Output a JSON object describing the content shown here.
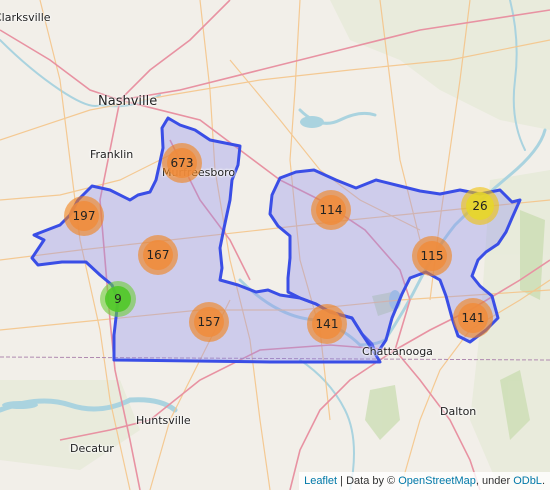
{
  "attribution": {
    "leaflet": "Leaflet",
    "separator": " | Data by © ",
    "osm": "OpenStreetMap",
    "under": ", under ",
    "odbl": "ODbL",
    "end": "."
  },
  "cities": [
    {
      "key": "clarksville",
      "label": "Clarksville",
      "size": "med"
    },
    {
      "key": "nashville",
      "label": "Nashville",
      "size": "big"
    },
    {
      "key": "franklin",
      "label": "Franklin",
      "size": "med"
    },
    {
      "key": "murfreesboro",
      "label": "Murfreesboro",
      "size": "med"
    },
    {
      "key": "chattanooga",
      "label": "Chattanooga",
      "size": "med"
    },
    {
      "key": "huntsville",
      "label": "Huntsville",
      "size": "med"
    },
    {
      "key": "decatur",
      "label": "Decatur",
      "size": "med"
    },
    {
      "key": "dalton",
      "label": "Dalton",
      "size": "med"
    }
  ],
  "clusters": [
    {
      "key": "c673",
      "count": "673",
      "tier": "orange"
    },
    {
      "key": "c197",
      "count": "197",
      "tier": "orange"
    },
    {
      "key": "c167",
      "count": "167",
      "tier": "orange"
    },
    {
      "key": "c9",
      "count": "9",
      "tier": "green"
    },
    {
      "key": "c157",
      "count": "157",
      "tier": "orange"
    },
    {
      "key": "c114",
      "count": "114",
      "tier": "orange"
    },
    {
      "key": "c141a",
      "count": "141",
      "tier": "orange"
    },
    {
      "key": "c115",
      "count": "115",
      "tier": "orange"
    },
    {
      "key": "c26",
      "count": "26",
      "tier": "yellow"
    },
    {
      "key": "c141b",
      "count": "141",
      "tier": "orange"
    }
  ],
  "colors": {
    "region_fill": "#8c8cf0",
    "region_stroke": "#3a4ee6",
    "cluster_orange_outer": "rgba(241,128,23,0.6)",
    "cluster_orange_inner": "rgba(240,140,60,0.85)",
    "cluster_yellow_outer": "rgba(240,194,12,0.6)",
    "cluster_yellow_inner": "rgba(230,215,40,0.85)",
    "cluster_green_outer": "rgba(110,204,57,0.6)",
    "cluster_green_inner": "rgba(80,200,40,0.9)",
    "water": "#aad3df",
    "road_major": "#e892a2",
    "road_minor": "#f5c58a"
  }
}
